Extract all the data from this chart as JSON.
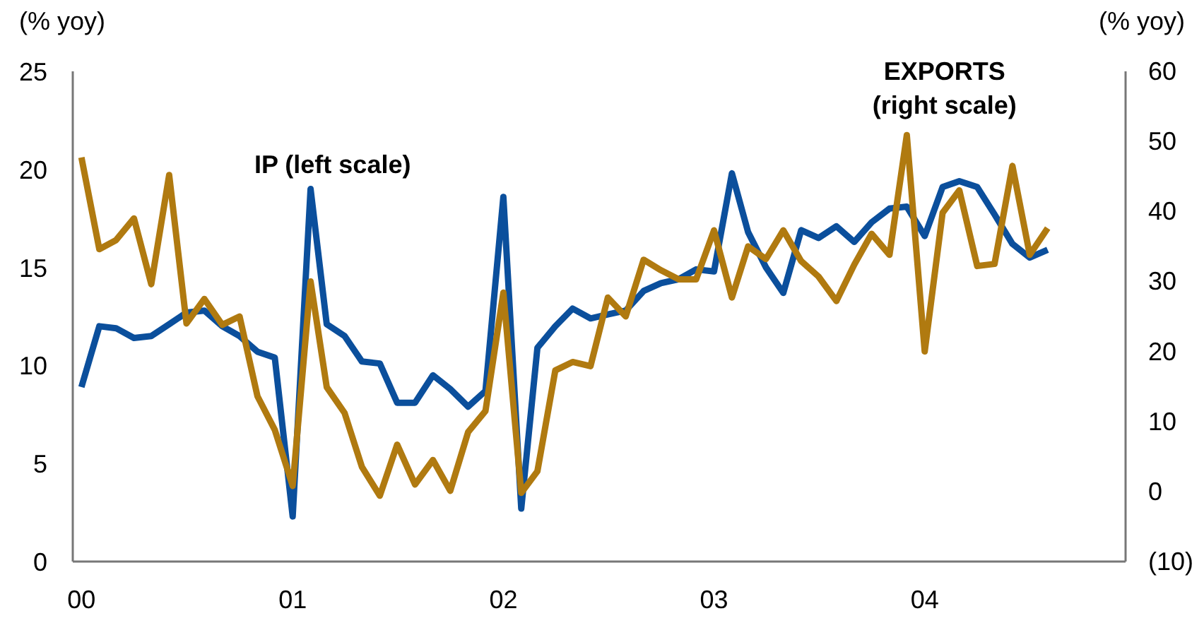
{
  "chart_data": {
    "type": "line",
    "ylabel": "(% yoy)",
    "y2label": "(% yoy)",
    "x": [
      "2000-01",
      "2000-02",
      "2000-03",
      "2000-04",
      "2000-05",
      "2000-06",
      "2000-07",
      "2000-08",
      "2000-09",
      "2000-10",
      "2000-11",
      "2000-12",
      "2001-01",
      "2001-02",
      "2001-03",
      "2001-04",
      "2001-05",
      "2001-06",
      "2001-07",
      "2001-08",
      "2001-09",
      "2001-10",
      "2001-11",
      "2001-12",
      "2002-01",
      "2002-02",
      "2002-03",
      "2002-04",
      "2002-05",
      "2002-06",
      "2002-07",
      "2002-08",
      "2002-09",
      "2002-10",
      "2002-11",
      "2002-12",
      "2003-01",
      "2003-02",
      "2003-03",
      "2003-04",
      "2003-05",
      "2003-06",
      "2003-07",
      "2003-08",
      "2003-09",
      "2003-10",
      "2003-11",
      "2003-12",
      "2004-01",
      "2004-02",
      "2004-03",
      "2004-04",
      "2004-05",
      "2004-06",
      "2004-07",
      "2004-08"
    ],
    "series": [
      {
        "name": "IP (left scale)",
        "color": "#0b4f9c",
        "values": [
          8.9,
          12.0,
          11.9,
          11.4,
          11.5,
          12.1,
          12.7,
          12.8,
          12.0,
          11.5,
          10.7,
          10.4,
          2.3,
          19.0,
          12.1,
          11.5,
          10.2,
          10.1,
          8.1,
          8.1,
          9.5,
          8.8,
          7.9,
          8.7,
          18.6,
          2.7,
          10.9,
          12.0,
          12.9,
          12.4,
          12.6,
          12.8,
          13.8,
          14.2,
          14.4,
          14.9,
          14.8,
          19.8,
          16.8,
          15.0,
          13.7,
          16.9,
          16.5,
          17.1,
          16.3,
          17.3,
          18.0,
          18.1,
          16.6,
          19.1,
          19.4,
          19.1,
          17.7,
          16.2,
          15.5,
          15.9
        ]
      },
      {
        "name": "EXPORTS\n(right scale)",
        "color": "#b07a10",
        "axis": "y2",
        "values": [
          47.7,
          34.6,
          35.9,
          39.0,
          29.6,
          45.2,
          24.0,
          27.5,
          23.8,
          25.0,
          13.6,
          8.8,
          0.8,
          30.0,
          14.9,
          11.2,
          3.5,
          -0.6,
          6.7,
          1.0,
          4.5,
          0.1,
          8.5,
          11.5,
          28.4,
          -0.2,
          2.9,
          17.3,
          18.5,
          17.9,
          27.7,
          25.0,
          33.1,
          31.6,
          30.3,
          30.3,
          37.3,
          27.7,
          35.0,
          33.2,
          37.3,
          32.9,
          30.7,
          27.2,
          32.4,
          36.8,
          33.8,
          50.9,
          20.0,
          39.8,
          43.0,
          32.2,
          32.5,
          46.5,
          33.8,
          37.6
        ]
      }
    ],
    "xlim": [
      "1999-12-17",
      "2004-12-14"
    ],
    "xticks": [
      {
        "value": "2000-01",
        "label": "00"
      },
      {
        "value": "2001-01",
        "label": "01"
      },
      {
        "value": "2002-01",
        "label": "02"
      },
      {
        "value": "2003-01",
        "label": "03"
      },
      {
        "value": "2004-01",
        "label": "04"
      }
    ],
    "ylim": [
      0,
      25
    ],
    "yticks": [
      0,
      5,
      10,
      15,
      20,
      25
    ],
    "y2lim": [
      -10,
      60
    ],
    "y2ticks": [
      {
        "value": -10,
        "label": "(10)"
      },
      0,
      10,
      20,
      30,
      40,
      50,
      60
    ]
  }
}
